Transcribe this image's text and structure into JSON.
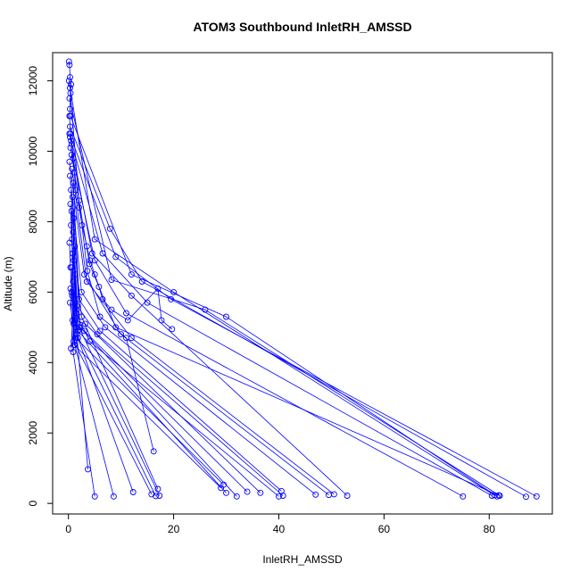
{
  "chart_data": {
    "type": "line",
    "title": "ATOM3 Southbound InletRH_AMSSD",
    "xlabel": "InletRH_AMSSD",
    "ylabel": "Altitude (m)",
    "xlim": [
      -3,
      92
    ],
    "ylim": [
      -300,
      12800
    ],
    "xticks": [
      0,
      20,
      40,
      60,
      80
    ],
    "yticks": [
      0,
      2000,
      4000,
      6000,
      8000,
      10000,
      12000
    ],
    "grid": false,
    "color": "#0000ff",
    "segments": [
      {
        "points": [
          [
            0.1,
            12550
          ],
          [
            0.2,
            12450
          ],
          [
            0.3,
            12100
          ],
          [
            0.5,
            11900
          ],
          [
            0.4,
            11650
          ],
          [
            0.3,
            11200
          ],
          [
            0.2,
            11000
          ],
          [
            0.4,
            10500
          ],
          [
            0.6,
            10200
          ],
          [
            0.9,
            9800
          ],
          [
            1.1,
            9400
          ],
          [
            1.4,
            8900
          ],
          [
            2.0,
            8400
          ],
          [
            2.6,
            7900
          ],
          [
            3.5,
            7300
          ],
          [
            4.1,
            6900
          ],
          [
            5.0,
            6500
          ],
          [
            5.8,
            6150
          ],
          [
            6.5,
            5800
          ],
          [
            8.2,
            5500
          ],
          [
            11.3,
            5200
          ],
          [
            17.0,
            6100
          ],
          [
            17.7,
            5200
          ],
          [
            19.7,
            4950
          ]
        ]
      },
      {
        "points": [
          [
            0.3,
            11800
          ],
          [
            2.0,
            8600
          ],
          [
            3.6,
            6600
          ],
          [
            6.0,
            5300
          ],
          [
            11.0,
            4700
          ],
          [
            16.2,
            1480
          ]
        ]
      },
      {
        "points": [
          [
            0.3,
            10400
          ],
          [
            4.5,
            7100
          ],
          [
            12.0,
            5900
          ],
          [
            53.0,
            220
          ]
        ]
      },
      {
        "points": [
          [
            0.1,
            12000
          ],
          [
            5.0,
            7500
          ],
          [
            20.0,
            6000
          ],
          [
            81.0,
            230
          ]
        ]
      },
      {
        "points": [
          [
            0.2,
            11500
          ],
          [
            8.2,
            6350
          ],
          [
            26.0,
            5500
          ],
          [
            82.0,
            220
          ]
        ]
      },
      {
        "points": [
          [
            0.4,
            11000
          ],
          [
            12.0,
            6500
          ],
          [
            30.0,
            5300
          ],
          [
            81.5,
            200
          ]
        ]
      },
      {
        "points": [
          [
            0.3,
            10700
          ],
          [
            7.9,
            7800
          ],
          [
            14.0,
            6300
          ],
          [
            87.0,
            190
          ]
        ]
      },
      {
        "points": [
          [
            0.2,
            10500
          ],
          [
            9.0,
            7000
          ],
          [
            19.5,
            5800
          ],
          [
            89.0,
            200
          ]
        ]
      },
      {
        "points": [
          [
            0.5,
            10300
          ],
          [
            6.5,
            7100
          ],
          [
            15.0,
            5700
          ],
          [
            80.5,
            220
          ]
        ]
      },
      {
        "points": [
          [
            0.4,
            10100
          ],
          [
            5.0,
            6900
          ],
          [
            11.0,
            5400
          ],
          [
            75.0,
            200
          ]
        ]
      },
      {
        "points": [
          [
            0.6,
            9900
          ],
          [
            4.0,
            6800
          ],
          [
            9.0,
            5000
          ],
          [
            81.8,
            230
          ]
        ]
      },
      {
        "points": [
          [
            0.2,
            9700
          ],
          [
            3.0,
            6500
          ],
          [
            10.0,
            4800
          ],
          [
            49.5,
            240
          ]
        ]
      },
      {
        "points": [
          [
            0.7,
            9500
          ],
          [
            3.5,
            6300
          ],
          [
            12.0,
            4700
          ],
          [
            50.5,
            260
          ]
        ]
      },
      {
        "points": [
          [
            0.3,
            9300
          ],
          [
            2.5,
            6000
          ],
          [
            7.0,
            5000
          ],
          [
            47.0,
            250
          ]
        ]
      },
      {
        "points": [
          [
            0.9,
            9100
          ],
          [
            2.0,
            5800
          ],
          [
            6.0,
            4900
          ],
          [
            40.5,
            350
          ]
        ]
      },
      {
        "points": [
          [
            0.5,
            8900
          ],
          [
            1.7,
            5600
          ],
          [
            5.5,
            4800
          ],
          [
            40.8,
            220
          ]
        ]
      },
      {
        "points": [
          [
            0.8,
            8700
          ],
          [
            1.5,
            5400
          ],
          [
            4.0,
            4600
          ],
          [
            40.0,
            200
          ]
        ]
      },
      {
        "points": [
          [
            0.4,
            8500
          ],
          [
            1.2,
            5200
          ],
          [
            3.2,
            5100
          ],
          [
            36.5,
            300
          ]
        ]
      },
      {
        "points": [
          [
            0.6,
            8300
          ],
          [
            1.0,
            5100
          ],
          [
            3.0,
            4900
          ],
          [
            34.0,
            330
          ]
        ]
      },
      {
        "points": [
          [
            1.0,
            8100
          ],
          [
            2.2,
            5000
          ],
          [
            32.0,
            200
          ]
        ]
      },
      {
        "points": [
          [
            0.5,
            7900
          ],
          [
            1.8,
            4900
          ],
          [
            30.0,
            300
          ]
        ]
      },
      {
        "points": [
          [
            0.9,
            7700
          ],
          [
            1.4,
            4700
          ],
          [
            29.5,
            530
          ]
        ]
      },
      {
        "points": [
          [
            0.7,
            7500
          ],
          [
            1.1,
            4500
          ],
          [
            29.0,
            440
          ]
        ]
      },
      {
        "points": [
          [
            1.2,
            7300
          ],
          [
            2.5,
            5300
          ],
          [
            17.0,
            410
          ]
        ]
      },
      {
        "points": [
          [
            0.8,
            7100
          ],
          [
            2.0,
            5000
          ],
          [
            17.3,
            220
          ]
        ]
      },
      {
        "points": [
          [
            1.0,
            6900
          ],
          [
            1.6,
            4800
          ],
          [
            16.6,
            210
          ]
        ]
      },
      {
        "points": [
          [
            0.6,
            6700
          ],
          [
            1.0,
            4600
          ],
          [
            15.8,
            260
          ]
        ]
      },
      {
        "points": [
          [
            1.3,
            6500
          ],
          [
            1.8,
            4700
          ],
          [
            12.3,
            320
          ]
        ]
      },
      {
        "points": [
          [
            0.9,
            6300
          ],
          [
            1.2,
            4500
          ],
          [
            8.6,
            200
          ]
        ]
      },
      {
        "points": [
          [
            0.4,
            6100
          ],
          [
            0.9,
            4300
          ],
          [
            5.0,
            200
          ]
        ]
      },
      {
        "points": [
          [
            0.7,
            5900
          ],
          [
            1.5,
            5000
          ],
          [
            3.7,
            970
          ]
        ]
      },
      {
        "points": [
          [
            0.3,
            5700
          ],
          [
            0.8,
            5200
          ],
          [
            0.5,
            4400
          ]
        ]
      },
      {
        "points": [
          [
            0.2,
            7400
          ],
          [
            0.4,
            6700
          ],
          [
            0.6,
            6000
          ],
          [
            1.2,
            4500
          ]
        ]
      }
    ]
  }
}
